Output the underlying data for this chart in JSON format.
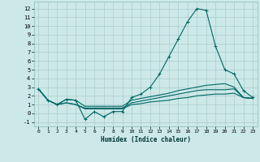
{
  "xlabel": "Humidex (Indice chaleur)",
  "bg_color": "#cce8e8",
  "grid_color": "#aacccc",
  "line_color": "#006666",
  "xlim": [
    -0.5,
    23.5
  ],
  "ylim": [
    -1.5,
    12.8
  ],
  "yticks": [
    -1,
    0,
    1,
    2,
    3,
    4,
    5,
    6,
    7,
    8,
    9,
    10,
    11,
    12
  ],
  "xticks": [
    0,
    1,
    2,
    3,
    4,
    5,
    6,
    7,
    8,
    9,
    10,
    11,
    12,
    13,
    14,
    15,
    16,
    17,
    18,
    19,
    20,
    21,
    22,
    23
  ],
  "series": [
    {
      "x": [
        0,
        1,
        2,
        3,
        4,
        5,
        6,
        7,
        8,
        9,
        10,
        11,
        12,
        13,
        14,
        15,
        16,
        17,
        18,
        19,
        20,
        21,
        22,
        23
      ],
      "y": [
        2.8,
        1.5,
        1.0,
        1.6,
        1.5,
        -0.7,
        0.2,
        -0.4,
        0.2,
        0.2,
        1.8,
        2.2,
        3.0,
        4.5,
        6.5,
        8.5,
        10.5,
        12.0,
        11.8,
        7.7,
        5.0,
        4.5,
        2.6,
        1.8
      ],
      "marker": true
    },
    {
      "x": [
        0,
        1,
        2,
        3,
        4,
        5,
        6,
        7,
        8,
        9,
        10,
        11,
        12,
        13,
        14,
        15,
        16,
        17,
        18,
        19,
        20,
        21,
        22,
        23
      ],
      "y": [
        2.8,
        1.5,
        1.0,
        1.6,
        1.5,
        0.8,
        0.8,
        0.8,
        0.8,
        0.8,
        1.5,
        1.7,
        1.9,
        2.1,
        2.3,
        2.6,
        2.8,
        3.0,
        3.2,
        3.3,
        3.4,
        3.0,
        1.8,
        1.7
      ],
      "marker": false
    },
    {
      "x": [
        0,
        1,
        2,
        3,
        4,
        5,
        6,
        7,
        8,
        9,
        10,
        11,
        12,
        13,
        14,
        15,
        16,
        17,
        18,
        19,
        20,
        21,
        22,
        23
      ],
      "y": [
        2.8,
        1.5,
        1.0,
        1.2,
        1.0,
        0.6,
        0.6,
        0.6,
        0.6,
        0.6,
        1.2,
        1.4,
        1.6,
        1.8,
        2.0,
        2.2,
        2.4,
        2.6,
        2.7,
        2.7,
        2.7,
        2.8,
        1.8,
        1.7
      ],
      "marker": false
    },
    {
      "x": [
        0,
        1,
        2,
        3,
        4,
        5,
        6,
        7,
        8,
        9,
        10,
        11,
        12,
        13,
        14,
        15,
        16,
        17,
        18,
        19,
        20,
        21,
        22,
        23
      ],
      "y": [
        2.8,
        1.5,
        1.0,
        1.2,
        1.0,
        0.5,
        0.5,
        0.5,
        0.5,
        0.5,
        1.0,
        1.1,
        1.3,
        1.4,
        1.5,
        1.7,
        1.8,
        2.0,
        2.1,
        2.2,
        2.2,
        2.3,
        1.8,
        1.7
      ],
      "marker": false
    }
  ]
}
